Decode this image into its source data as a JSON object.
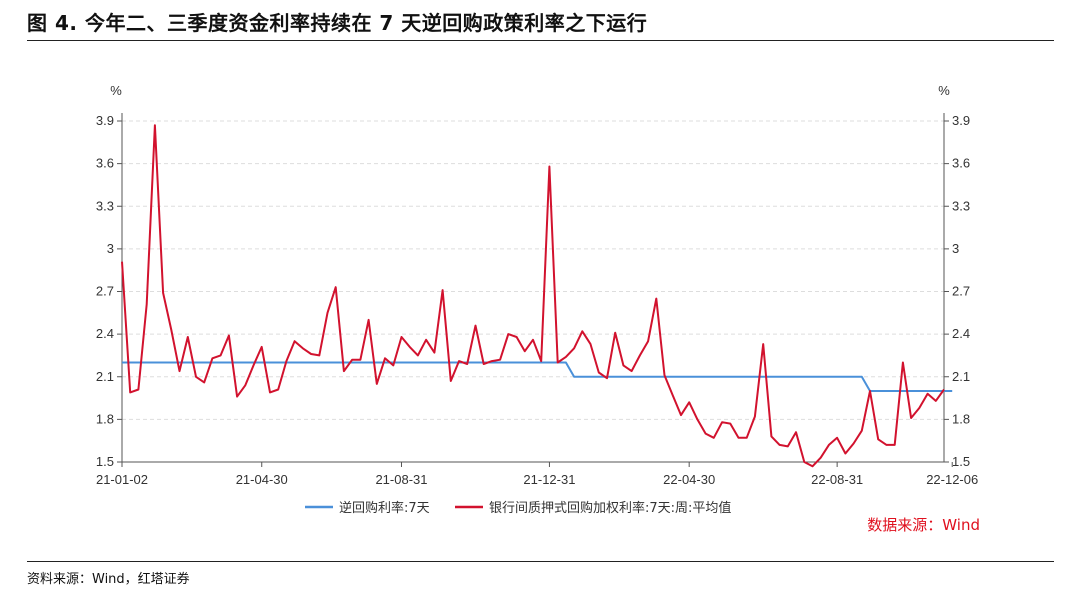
{
  "title": "图 4. 今年二、三季度资金利率持续在 7 天逆回购政策利率之下运行",
  "source_in_chart": "数据来源：Wind",
  "footer_source": "资料来源：Wind，红塔证券",
  "colors": {
    "reverse_repo": "#4a90d9",
    "dr007": "#d2122e",
    "source_red": "#e0101e",
    "grid": "#dddddd"
  },
  "chart_data": {
    "type": "line",
    "y_unit_left": "%",
    "y_unit_right": "%",
    "ylim": [
      1.5,
      3.9
    ],
    "yticks": [
      1.5,
      1.8,
      2.1,
      2.4,
      2.7,
      3.0,
      3.3,
      3.6,
      3.9
    ],
    "ytick_labels": [
      "1.5",
      "1.8",
      "2.1",
      "2.4",
      "2.7",
      "3",
      "3.3",
      "3.6",
      "3.9"
    ],
    "xticks": [
      "21-01-02",
      "21-04-30",
      "21-08-31",
      "21-12-31",
      "22-04-30",
      "22-08-31",
      "22-12-06"
    ],
    "x_count": 101,
    "xtick_index": [
      0,
      17,
      34,
      52,
      69,
      87,
      101
    ],
    "grid": true,
    "legend_position": "bottom",
    "series": [
      {
        "name": "逆回购利率:7天",
        "color": "#4a90d9",
        "values": [
          2.2,
          2.2,
          2.2,
          2.2,
          2.2,
          2.2,
          2.2,
          2.2,
          2.2,
          2.2,
          2.2,
          2.2,
          2.2,
          2.2,
          2.2,
          2.2,
          2.2,
          2.2,
          2.2,
          2.2,
          2.2,
          2.2,
          2.2,
          2.2,
          2.2,
          2.2,
          2.2,
          2.2,
          2.2,
          2.2,
          2.2,
          2.2,
          2.2,
          2.2,
          2.2,
          2.2,
          2.2,
          2.2,
          2.2,
          2.2,
          2.2,
          2.2,
          2.2,
          2.2,
          2.2,
          2.2,
          2.2,
          2.2,
          2.2,
          2.2,
          2.2,
          2.2,
          2.2,
          2.2,
          2.2,
          2.1,
          2.1,
          2.1,
          2.1,
          2.1,
          2.1,
          2.1,
          2.1,
          2.1,
          2.1,
          2.1,
          2.1,
          2.1,
          2.1,
          2.1,
          2.1,
          2.1,
          2.1,
          2.1,
          2.1,
          2.1,
          2.1,
          2.1,
          2.1,
          2.1,
          2.1,
          2.1,
          2.1,
          2.1,
          2.1,
          2.1,
          2.1,
          2.1,
          2.1,
          2.1,
          2.1,
          2.0,
          2.0,
          2.0,
          2.0,
          2.0,
          2.0,
          2.0,
          2.0,
          2.0,
          2.0,
          2.0
        ]
      },
      {
        "name": "银行间质押式回购加权利率:7天:周:平均值",
        "color": "#d2122e",
        "values": [
          2.91,
          1.99,
          2.01,
          2.61,
          3.87,
          2.69,
          2.43,
          2.14,
          2.38,
          2.1,
          2.06,
          2.23,
          2.25,
          2.39,
          1.96,
          2.04,
          2.18,
          2.31,
          1.99,
          2.01,
          2.21,
          2.35,
          2.3,
          2.26,
          2.25,
          2.55,
          2.73,
          2.14,
          2.22,
          2.22,
          2.5,
          2.05,
          2.23,
          2.18,
          2.38,
          2.31,
          2.25,
          2.36,
          2.27,
          2.71,
          2.07,
          2.21,
          2.19,
          2.46,
          2.19,
          2.21,
          2.22,
          2.4,
          2.38,
          2.28,
          2.36,
          2.21,
          3.58,
          2.2,
          2.24,
          2.3,
          2.42,
          2.33,
          2.13,
          2.09,
          2.41,
          2.18,
          2.14,
          2.25,
          2.35,
          2.65,
          2.11,
          1.97,
          1.83,
          1.92,
          1.8,
          1.7,
          1.67,
          1.78,
          1.77,
          1.67,
          1.67,
          1.82,
          2.33,
          1.68,
          1.62,
          1.61,
          1.71,
          1.5,
          1.47,
          1.53,
          1.62,
          1.67,
          1.56,
          1.63,
          1.72,
          2.0,
          1.66,
          1.62,
          1.62,
          2.2,
          1.81,
          1.88,
          1.98,
          1.93,
          2.01
        ]
      }
    ]
  }
}
